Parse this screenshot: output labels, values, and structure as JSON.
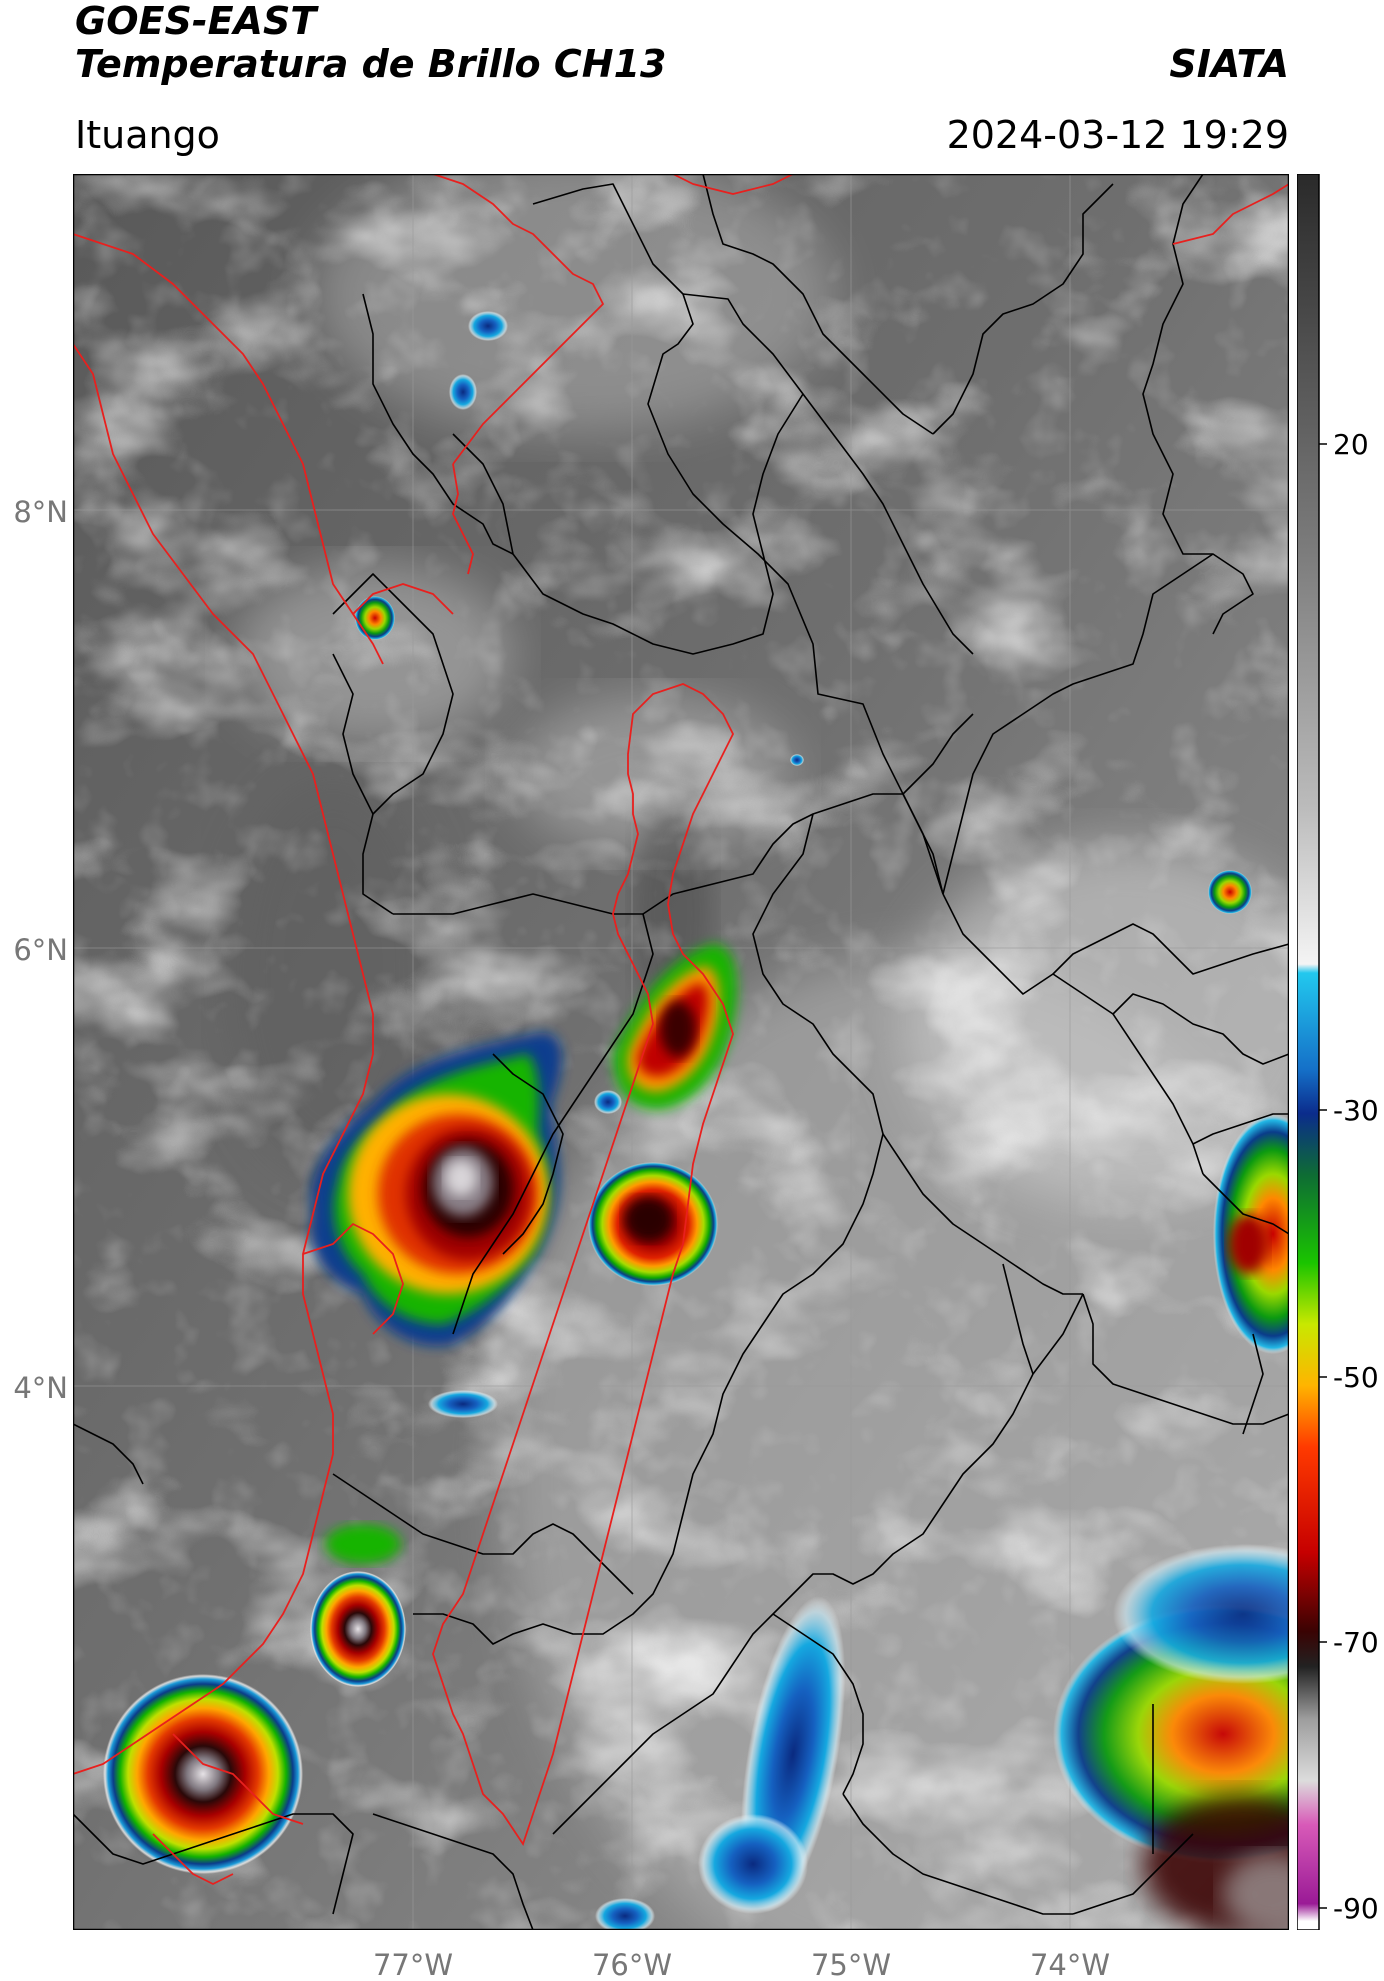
{
  "header": {
    "satellite": "GOES-EAST",
    "product": "Temperatura de Brillo CH13",
    "brand": "SIATA",
    "location": "Ituango",
    "timestamp": "2024-03-12 19:29"
  },
  "map": {
    "lat_labels": [
      "8°N",
      "6°N",
      "4°N"
    ],
    "lon_labels": [
      "77°W",
      "76°W",
      "75°W",
      "74°W"
    ],
    "base_color": "#6e6e6e",
    "boundary_colors": {
      "country_coast": "#e8201e",
      "departments": "#000000",
      "watershed": "#e8201e"
    },
    "icons": [
      "storm-cell-icon"
    ]
  },
  "colorbar": {
    "ticks": [
      "20",
      "-30",
      "-50",
      "-70",
      "-90"
    ],
    "units_hint": "°C",
    "stops": [
      {
        "color": "#ffffff",
        "pos": 0.0
      },
      {
        "color": "#ffffff",
        "pos": 0.005
      },
      {
        "color": "#9a1a96",
        "pos": 0.015
      },
      {
        "color": "#d85ab8",
        "pos": 0.06
      },
      {
        "color": "#dcdcdc",
        "pos": 0.085
      },
      {
        "color": "#9e9e9e",
        "pos": 0.12
      },
      {
        "color": "#222222",
        "pos": 0.15
      },
      {
        "color": "#3a0303",
        "pos": 0.17
      },
      {
        "color": "#c60000",
        "pos": 0.215
      },
      {
        "color": "#ff3a00",
        "pos": 0.275
      },
      {
        "color": "#ffb400",
        "pos": 0.31
      },
      {
        "color": "#c8e800",
        "pos": 0.345
      },
      {
        "color": "#1ac400",
        "pos": 0.38
      },
      {
        "color": "#0e6c34",
        "pos": 0.43
      },
      {
        "color": "#0b2c8c",
        "pos": 0.465
      },
      {
        "color": "#1570c8",
        "pos": 0.49
      },
      {
        "color": "#22c8ee",
        "pos": 0.545
      },
      {
        "color": "#f4f4f4",
        "pos": 0.55
      },
      {
        "color": "#bbbbbb",
        "pos": 0.64
      },
      {
        "color": "#7e7e7e",
        "pos": 0.78
      },
      {
        "color": "#2a2a2a",
        "pos": 1.0
      }
    ]
  }
}
